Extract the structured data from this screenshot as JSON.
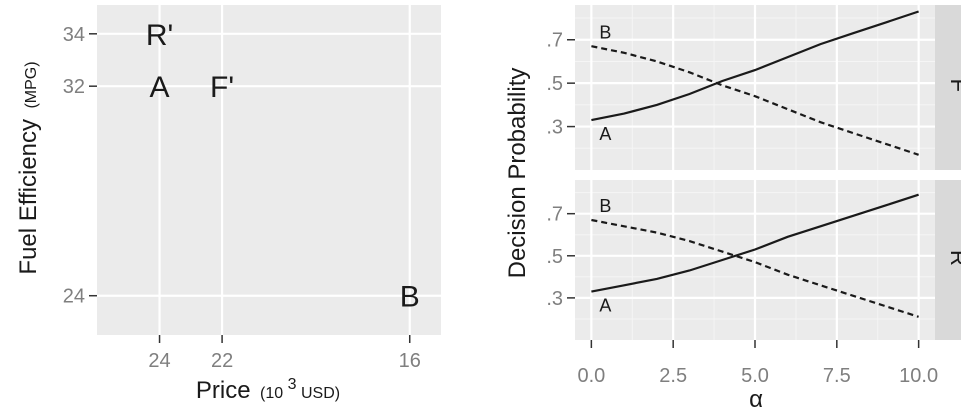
{
  "left_chart": {
    "type": "scatter",
    "xlabel": "Price",
    "xlabel_unit_prefix": "(10",
    "xlabel_unit_exp": "3",
    "xlabel_unit_suffix": " USD)",
    "ylabel": "Fuel Efficiency",
    "ylabel_unit": "(MPG)",
    "xlim": [
      26,
      15
    ],
    "ylim": [
      22.5,
      35.1
    ],
    "x_ticks": [
      24,
      22,
      16
    ],
    "y_ticks": [
      34,
      32,
      24
    ],
    "x_tick_labels": [
      "24",
      "22",
      "16"
    ],
    "y_tick_labels": [
      "34",
      "32",
      "24"
    ],
    "grid": true,
    "points": [
      {
        "label": "R'",
        "price": 24,
        "mpg": 34
      },
      {
        "label": "A",
        "price": 24,
        "mpg": 32
      },
      {
        "label": "F'",
        "price": 22,
        "mpg": 32
      },
      {
        "label": "B",
        "price": 16,
        "mpg": 24
      }
    ]
  },
  "chart_data": {
    "type": "line",
    "xlabel": "α",
    "ylabel": "Decision Probability",
    "xlim": [
      -0.5,
      10.5
    ],
    "ylim": [
      0.1,
      0.86
    ],
    "x_ticks": [
      0.0,
      2.5,
      5.0,
      7.5,
      10.0
    ],
    "x_tick_labels": [
      "0.0",
      "2.5",
      "5.0",
      "7.5",
      "10.0"
    ],
    "y_ticks": [
      0.3,
      0.5,
      0.7
    ],
    "y_tick_labels": [
      ".3",
      ".5",
      ".7"
    ],
    "grid": true,
    "x": [
      0,
      1,
      2,
      3,
      4,
      5,
      6,
      7,
      8,
      9,
      10
    ],
    "facets": [
      {
        "strip": "F'",
        "series": [
          {
            "name": "A",
            "linetype": "solid",
            "values": [
              0.33,
              0.36,
              0.4,
              0.45,
              0.51,
              0.56,
              0.62,
              0.68,
              0.73,
              0.78,
              0.83
            ]
          },
          {
            "name": "B",
            "linetype": "dashed",
            "values": [
              0.67,
              0.64,
              0.6,
              0.55,
              0.49,
              0.44,
              0.38,
              0.32,
              0.27,
              0.22,
              0.17
            ]
          }
        ]
      },
      {
        "strip": "R'",
        "series": [
          {
            "name": "A",
            "linetype": "solid",
            "values": [
              0.33,
              0.36,
              0.39,
              0.43,
              0.48,
              0.53,
              0.59,
              0.64,
              0.69,
              0.74,
              0.79
            ]
          },
          {
            "name": "B",
            "linetype": "dashed",
            "values": [
              0.67,
              0.64,
              0.61,
              0.57,
              0.52,
              0.47,
              0.41,
              0.36,
              0.31,
              0.26,
              0.21
            ]
          }
        ]
      }
    ]
  }
}
